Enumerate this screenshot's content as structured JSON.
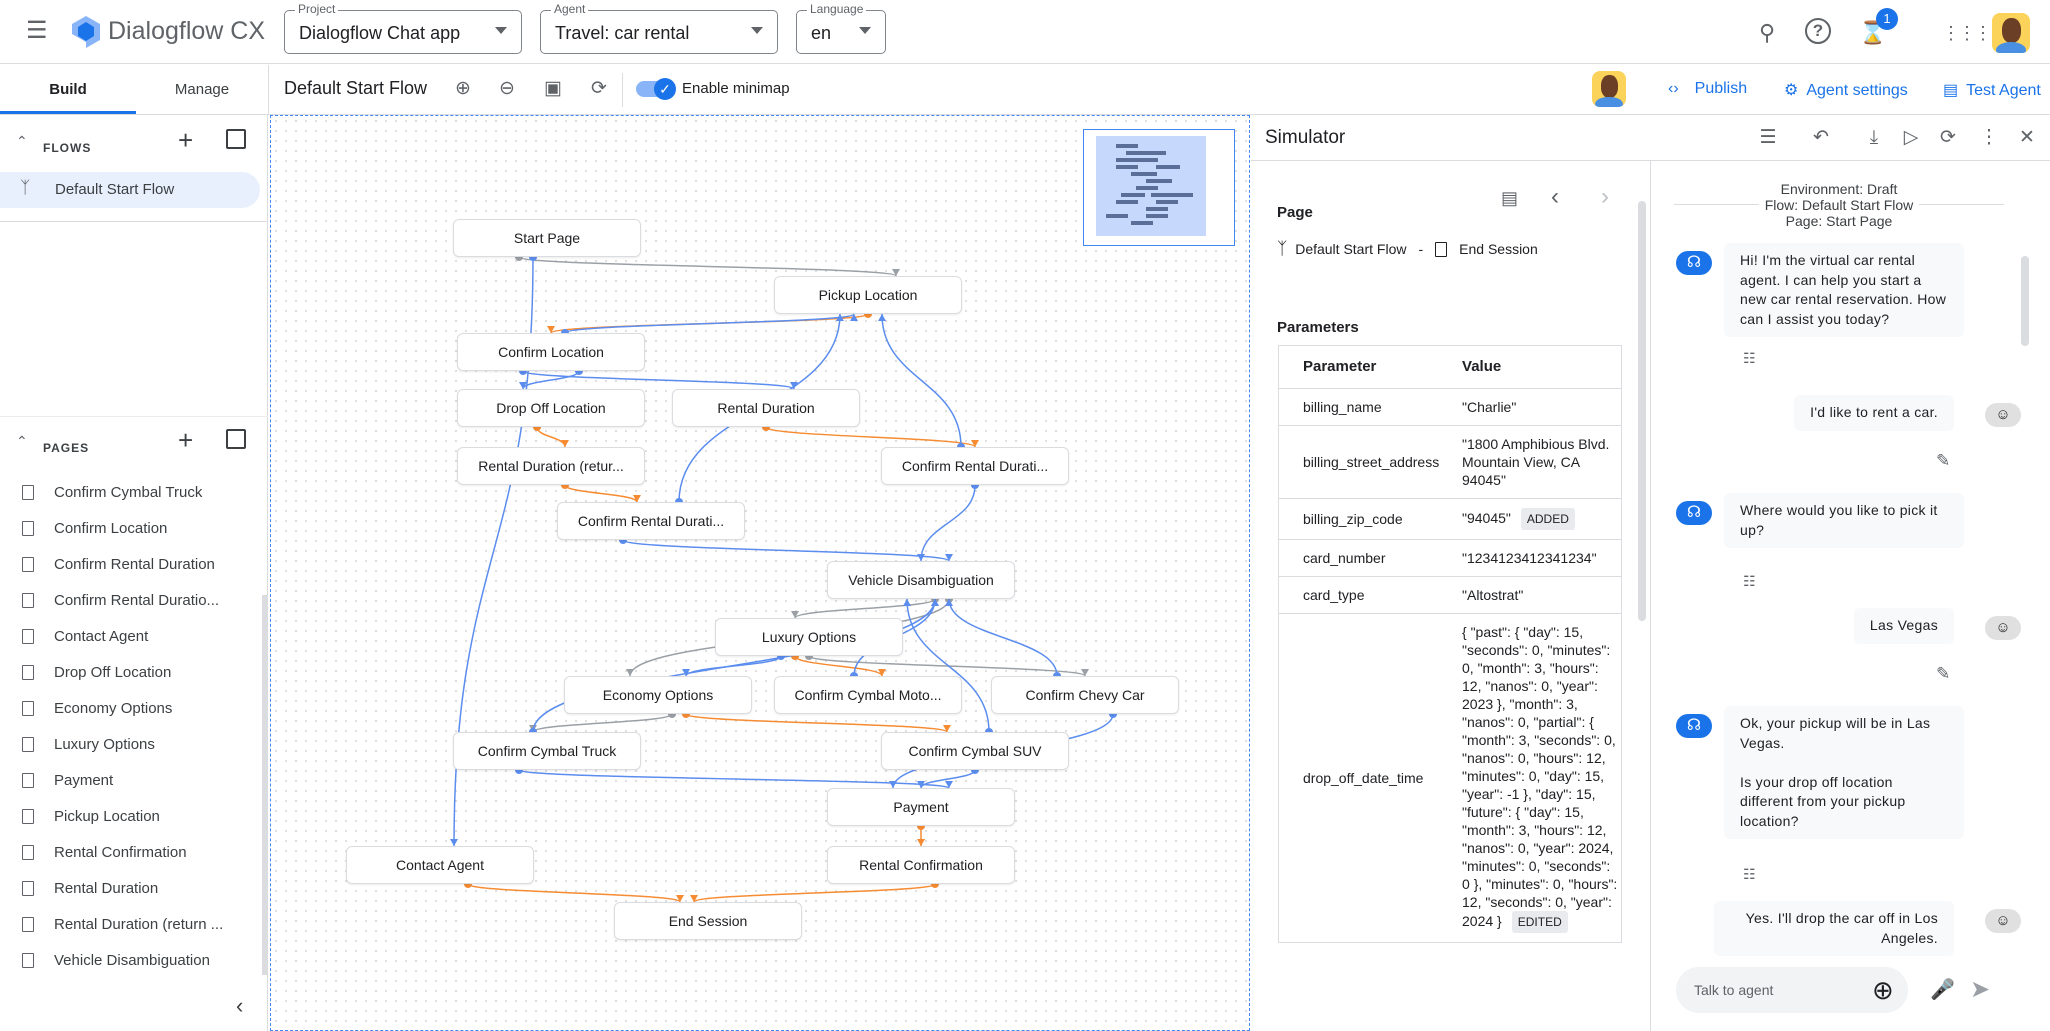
{
  "app": {
    "title": "Dialogflow CX",
    "notifications": "1"
  },
  "selectors": {
    "project": {
      "label": "Project",
      "value": "Dialogflow Chat app"
    },
    "agent": {
      "label": "Agent",
      "value": "Travel: car rental"
    },
    "language": {
      "label": "Language",
      "value": "en"
    }
  },
  "tabs": {
    "build": "Build",
    "manage": "Manage"
  },
  "toolbar": {
    "flow_title": "Default Start Flow",
    "minimap_label": "Enable minimap",
    "minimap_enabled": true,
    "publish": "Publish",
    "agent_settings": "Agent settings",
    "test_agent": "Test Agent"
  },
  "sidebar": {
    "flows_header": "FLOWS",
    "flows": [
      "Default Start Flow"
    ],
    "pages_header": "PAGES",
    "pages": [
      "Confirm Cymbal Truck",
      "Confirm Location",
      "Confirm Rental Duration",
      "Confirm Rental Duratio...",
      "Contact Agent",
      "Drop Off Location",
      "Economy Options",
      "Luxury Options",
      "Payment",
      "Pickup Location",
      "Rental Confirmation",
      "Rental Duration",
      "Rental Duration (return ...",
      "Vehicle Disambiguation"
    ]
  },
  "graph": {
    "nodes": [
      "Start Page",
      "Pickup Location",
      "Confirm Location",
      "Drop Off Location",
      "Rental Duration",
      "Rental Duration (retur...",
      "Confirm Rental Durati...",
      "Confirm Rental Durati...",
      "Vehicle Disambiguation",
      "Luxury Options",
      "Economy Options",
      "Confirm Cymbal Moto...",
      "Confirm Chevy Car",
      "Confirm Cymbal Truck",
      "Confirm Cymbal SUV",
      "Payment",
      "Contact Agent",
      "Rental Confirmation",
      "End Session"
    ],
    "edges": [
      [
        0,
        1,
        "gray"
      ],
      [
        0,
        16,
        "blue"
      ],
      [
        1,
        2,
        "orange"
      ],
      [
        2,
        1,
        "blue"
      ],
      [
        2,
        3,
        "blue"
      ],
      [
        2,
        4,
        "blue"
      ],
      [
        3,
        5,
        "orange"
      ],
      [
        4,
        6,
        "orange"
      ],
      [
        5,
        7,
        "orange"
      ],
      [
        7,
        1,
        "blue"
      ],
      [
        7,
        8,
        "blue"
      ],
      [
        6,
        1,
        "blue"
      ],
      [
        6,
        8,
        "blue"
      ],
      [
        8,
        9,
        "gray"
      ],
      [
        8,
        10,
        "gray"
      ],
      [
        9,
        10,
        "blue"
      ],
      [
        9,
        11,
        "orange"
      ],
      [
        9,
        12,
        "gray"
      ],
      [
        10,
        13,
        "gray"
      ],
      [
        10,
        14,
        "orange"
      ],
      [
        13,
        15,
        "blue"
      ],
      [
        13,
        8,
        "blue"
      ],
      [
        14,
        15,
        "blue"
      ],
      [
        14,
        8,
        "blue"
      ],
      [
        12,
        15,
        "blue"
      ],
      [
        12,
        8,
        "blue"
      ],
      [
        11,
        8,
        "blue"
      ],
      [
        15,
        17,
        "orange"
      ],
      [
        17,
        18,
        "orange"
      ],
      [
        16,
        18,
        "orange"
      ]
    ],
    "colors": {
      "gray": "#9aa0a6",
      "orange": "#f68b32",
      "blue": "#5b8def"
    }
  },
  "simulator": {
    "title": "Simulator",
    "page_label": "Page",
    "flow": "Default Start Flow",
    "separator": "-",
    "page": "End Session",
    "parameters_label": "Parameters",
    "columns": [
      "Parameter",
      "Value"
    ],
    "rows": [
      {
        "name": "billing_name",
        "value": "\"Charlie\"",
        "chip": ""
      },
      {
        "name": "billing_street_address",
        "value": "\"1800 Amphibious Blvd. Mountain View, CA 94045\"",
        "chip": ""
      },
      {
        "name": "billing_zip_code",
        "value": "\"94045\"",
        "chip": "ADDED"
      },
      {
        "name": "card_number",
        "value": "\"1234123412341234\"",
        "chip": ""
      },
      {
        "name": "card_type",
        "value": "\"Altostrat\"",
        "chip": ""
      },
      {
        "name": "drop_off_date_time",
        "value": "{ \"past\": { \"day\": 15, \"seconds\": 0, \"minutes\": 0, \"month\": 3, \"hours\": 12, \"nanos\": 0, \"year\": 2023 }, \"month\": 3, \"nanos\": 0, \"partial\": { \"month\": 3, \"seconds\": 0, \"nanos\": 0, \"hours\": 12, \"minutes\": 0, \"day\": 15, \"year\": -1 }, \"day\": 15, \"future\": { \"day\": 15, \"month\": 3, \"hours\": 12, \"nanos\": 0, \"year\": 2024, \"minutes\": 0, \"seconds\": 0 }, \"minutes\": 0, \"hours\": 12, \"seconds\": 0, \"year\": 2024 }",
        "chip": "EDITED"
      }
    ]
  },
  "chat": {
    "environment": "Environment: Draft",
    "flow": "Flow: Default Start Flow",
    "page": "Page: Start Page",
    "messages": [
      {
        "from": "agent",
        "text": "Hi! I'm the virtual car rental agent. I can help you start a new car rental reservation. How can I assist you today?"
      },
      {
        "from": "user",
        "text": "I'd like to rent a car."
      },
      {
        "from": "agent",
        "text": "Where would you like to pick it up?"
      },
      {
        "from": "user",
        "text": "Las Vegas"
      },
      {
        "from": "agent",
        "text": "Ok, your pickup will be in Las Vegas.\n\nIs your drop off location different from your pickup location?"
      },
      {
        "from": "user",
        "text": "Yes. I'll drop the car off in Los Angeles."
      }
    ],
    "input_placeholder": "Talk to agent"
  }
}
